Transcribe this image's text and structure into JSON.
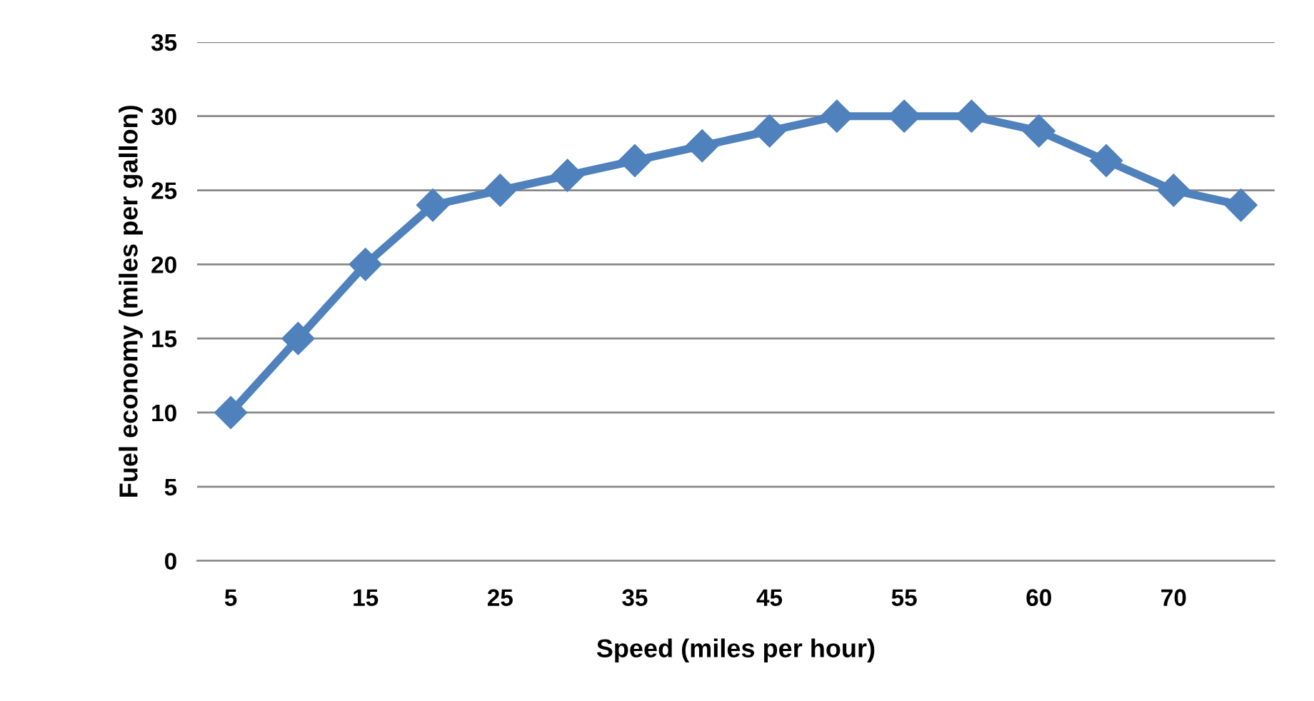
{
  "chart_data": {
    "type": "line",
    "xlabel": "Speed (miles per hour)",
    "ylabel": "Fuel economy (miles per gallon)",
    "categories": [
      "5",
      null,
      "15",
      null,
      "25",
      null,
      "35",
      null,
      "45",
      null,
      "55",
      null,
      "60",
      null,
      "70",
      null
    ],
    "series": [
      {
        "color": "#4f81bd",
        "values": [
          10,
          15,
          20,
          24,
          25,
          26,
          27,
          28,
          29,
          30,
          30,
          30,
          29,
          27,
          25,
          24
        ]
      }
    ],
    "ylim": [
      0,
      35
    ],
    "yticks": [
      0,
      5,
      10,
      15,
      20,
      25,
      30,
      35
    ],
    "grid": "y",
    "marker": "diamond",
    "line_style": "solid",
    "legend": false
  }
}
